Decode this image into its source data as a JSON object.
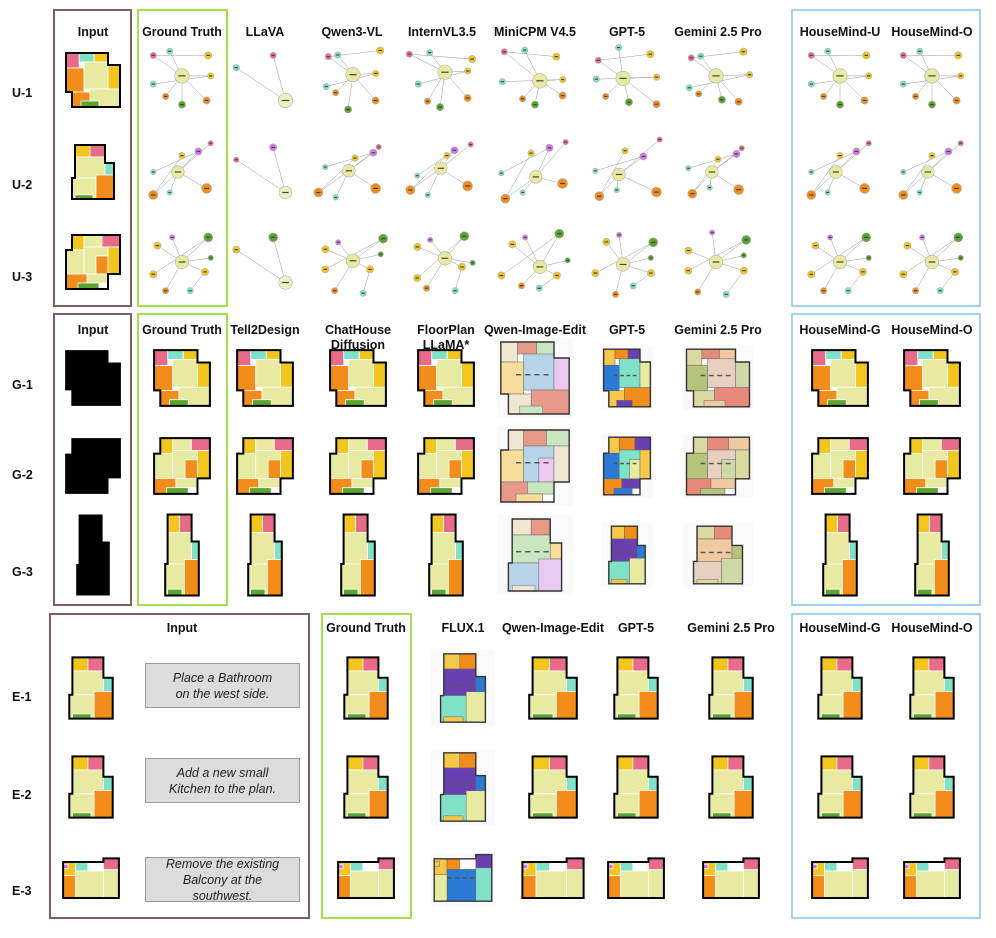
{
  "understanding": {
    "headers": [
      "Input",
      "Ground Truth",
      "LLaVA",
      "Qwen3-VL",
      "InternVL3.5",
      "MiniCPM V4.5",
      "GPT-5",
      "Gemini 2.5 Pro",
      "HouseMind-U",
      "HouseMind-O"
    ],
    "rows": [
      "U-1",
      "U-2",
      "U-3"
    ]
  },
  "generation": {
    "headers": [
      "Input",
      "Ground Truth",
      "Tell2Design",
      "ChatHouse Diffusion",
      "FloorPlan LLaMA*",
      "Qwen-Image-Edit",
      "GPT-5",
      "Gemini 2.5 Pro",
      "HouseMind-G",
      "HouseMind-O"
    ],
    "rows": [
      "G-1",
      "G-2",
      "G-3"
    ]
  },
  "editing": {
    "headers": [
      "Input",
      "Ground Truth",
      "FLUX.1",
      "Qwen-Image-Edit",
      "GPT-5",
      "Gemini 2.5 Pro",
      "HouseMind-G",
      "HouseMind-O"
    ],
    "rows": [
      "E-1",
      "E-2",
      "E-3"
    ],
    "instructions": [
      "Place a  Bathroom on the west side.",
      "Add a new small Kitchen to the plan.",
      "Remove the existing Balcony at the southwest."
    ]
  },
  "colors": {
    "living": "#e9eaa2",
    "kitchen": "#f28c1b",
    "bedroom": "#f2c61f",
    "bathroom": "#7fe2c8",
    "balcony": "#5aa532",
    "storage": "#e86b8a",
    "study": "#cf79e3",
    "frame_input": "#7d5f5f",
    "frame_gt": "#a6e04a",
    "frame_ours": "#9fd3ef"
  }
}
